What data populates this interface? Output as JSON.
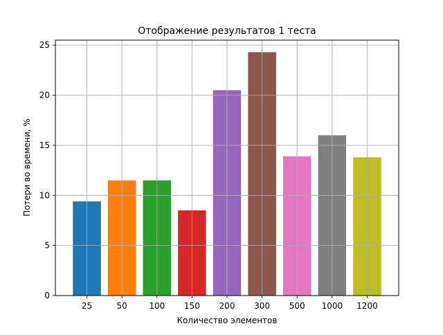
{
  "chart_data": {
    "type": "bar",
    "title": "Отображение результатов 1 теста",
    "xlabel": "Количество элементов",
    "ylabel": "Потери во времени, %",
    "categories": [
      "25",
      "50",
      "100",
      "150",
      "200",
      "300",
      "500",
      "1000",
      "1200"
    ],
    "values": [
      9.4,
      11.5,
      11.5,
      8.5,
      20.5,
      24.3,
      13.9,
      16.0,
      13.8
    ],
    "ylim": [
      0,
      25.5
    ],
    "yticks": [
      0,
      5,
      10,
      15,
      20,
      25
    ],
    "grid": true,
    "legend": "none",
    "colors": [
      "#1f77b4",
      "#ff7f0e",
      "#2ca02c",
      "#d62728",
      "#9467bd",
      "#8c564b",
      "#e377c2",
      "#7f7f7f",
      "#bcbd22"
    ]
  }
}
